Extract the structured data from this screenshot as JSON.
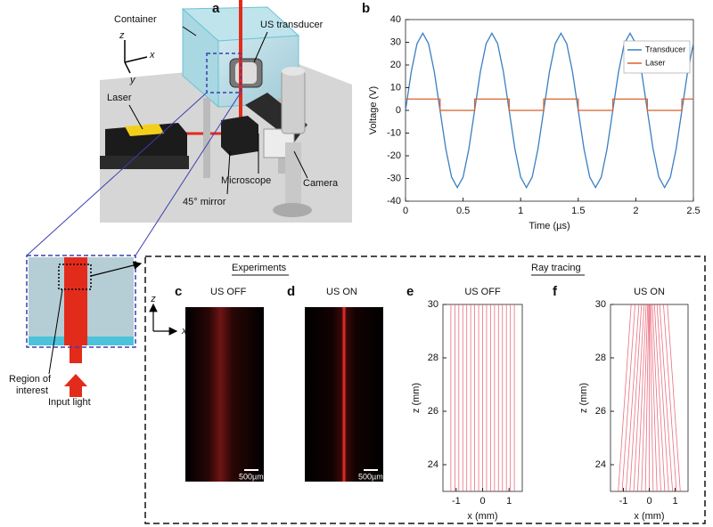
{
  "panel_a": {
    "letter": "a",
    "labels": {
      "container": "Container",
      "us_transducer": "US transducer",
      "laser": "Laser",
      "microscope": "Microscope",
      "camera": "Camera",
      "mirror": "45° mirror"
    },
    "axes": {
      "z": "z",
      "x": "x",
      "y": "y"
    }
  },
  "inset": {
    "axes": {
      "z": "z",
      "x": "x"
    },
    "region_label": [
      "Region of",
      "interest"
    ],
    "input_label": "Input light"
  },
  "experiments": {
    "heading": "Experiments",
    "panels": [
      {
        "letter": "c",
        "title": "US OFF",
        "scale_bar": "500µm"
      },
      {
        "letter": "d",
        "title": "US ON",
        "scale_bar": "500µm"
      }
    ]
  },
  "ray_tracing_heading": "Ray tracing",
  "chart_data": [
    {
      "type": "line",
      "label": "b",
      "xlabel": "Time (µs)",
      "ylabel": "Voltage (V)",
      "xlim": [
        0,
        2.5
      ],
      "xticks": [
        0,
        0.5,
        1,
        1.5,
        2,
        2.5
      ],
      "ylim": [
        -40,
        40
      ],
      "yticks": [
        -40,
        -30,
        -20,
        -10,
        0,
        10,
        20,
        30,
        40
      ],
      "legend": "upper right",
      "series": [
        {
          "name": "Transducer",
          "color": "#3a7fc1",
          "x": [
            0,
            0.05,
            0.1,
            0.15,
            0.2,
            0.25,
            0.3,
            0.35,
            0.4,
            0.45,
            0.5,
            0.55,
            0.6,
            0.65,
            0.7,
            0.75,
            0.8,
            0.85,
            0.9,
            0.95,
            1,
            1.05,
            1.1,
            1.15,
            1.2,
            1.25,
            1.3,
            1.35,
            1.4,
            1.45,
            1.5,
            1.55,
            1.6,
            1.65,
            1.7,
            1.75,
            1.8,
            1.85,
            1.9,
            1.95,
            2,
            2.05,
            2.1,
            2.15,
            2.2,
            2.25,
            2.3,
            2.35,
            2.4,
            2.45,
            2.5
          ],
          "values": [
            0,
            17,
            29.4,
            34,
            29.4,
            17,
            0,
            -17,
            -29.4,
            -34,
            -29.4,
            -17,
            0,
            17,
            29.4,
            34,
            29.4,
            17,
            0,
            -17,
            -29.4,
            -34,
            -29.4,
            -17,
            0,
            17,
            29.4,
            34,
            29.4,
            17,
            0,
            -17,
            -29.4,
            -34,
            -29.4,
            -17,
            0,
            17,
            29.4,
            34,
            29.4,
            17,
            0,
            -17,
            -29.4,
            -34,
            -29.4,
            -17,
            0,
            17,
            29.4
          ]
        },
        {
          "name": "Laser",
          "color": "#d9622b",
          "x": [
            0,
            0.3,
            0.3,
            0.6,
            0.6,
            0.9,
            0.9,
            1.2,
            1.2,
            1.5,
            1.5,
            1.8,
            1.8,
            2.1,
            2.1,
            2.4,
            2.4,
            2.5
          ],
          "values": [
            5,
            5,
            0,
            0,
            5,
            5,
            0,
            0,
            5,
            5,
            0,
            0,
            5,
            5,
            0,
            0,
            5,
            5
          ]
        }
      ]
    },
    {
      "type": "rays",
      "label": "e",
      "title": "US OFF",
      "xlabel": "x (mm)",
      "ylabel": "z (mm)",
      "xlim": [
        -1.5,
        1.5
      ],
      "xticks": [
        -1,
        0,
        1
      ],
      "ylim": [
        23,
        30
      ],
      "yticks": [
        24,
        26,
        28,
        30
      ],
      "color": "#e8556a",
      "rays": {
        "x_bottom": [
          -1.2,
          -1.05,
          -0.9,
          -0.75,
          -0.6,
          -0.45,
          -0.3,
          -0.15,
          0,
          0.15,
          0.3,
          0.45,
          0.6,
          0.75,
          0.9,
          1.05,
          1.2
        ],
        "x_top": [
          -1.2,
          -1.05,
          -0.9,
          -0.75,
          -0.6,
          -0.45,
          -0.3,
          -0.15,
          0,
          0.15,
          0.3,
          0.45,
          0.6,
          0.75,
          0.9,
          1.05,
          1.2
        ]
      }
    },
    {
      "type": "rays",
      "label": "f",
      "title": "US ON",
      "xlabel": "x (mm)",
      "ylabel": "z (mm)",
      "xlim": [
        -1.5,
        1.5
      ],
      "xticks": [
        -1,
        0,
        1
      ],
      "ylim": [
        23,
        30
      ],
      "yticks": [
        24,
        26,
        28,
        30
      ],
      "color": "#e8556a",
      "rays": {
        "x_bottom": [
          -1.2,
          -1.05,
          -0.9,
          -0.75,
          -0.6,
          -0.45,
          -0.3,
          -0.15,
          0,
          0.15,
          0.3,
          0.45,
          0.6,
          0.75,
          0.9,
          1.05,
          1.2
        ],
        "x_top": [
          -0.7,
          -0.55,
          -0.4,
          -0.3,
          -0.2,
          -0.12,
          -0.06,
          -0.02,
          0,
          0.02,
          0.06,
          0.12,
          0.2,
          0.3,
          0.4,
          0.55,
          0.7
        ]
      }
    }
  ]
}
